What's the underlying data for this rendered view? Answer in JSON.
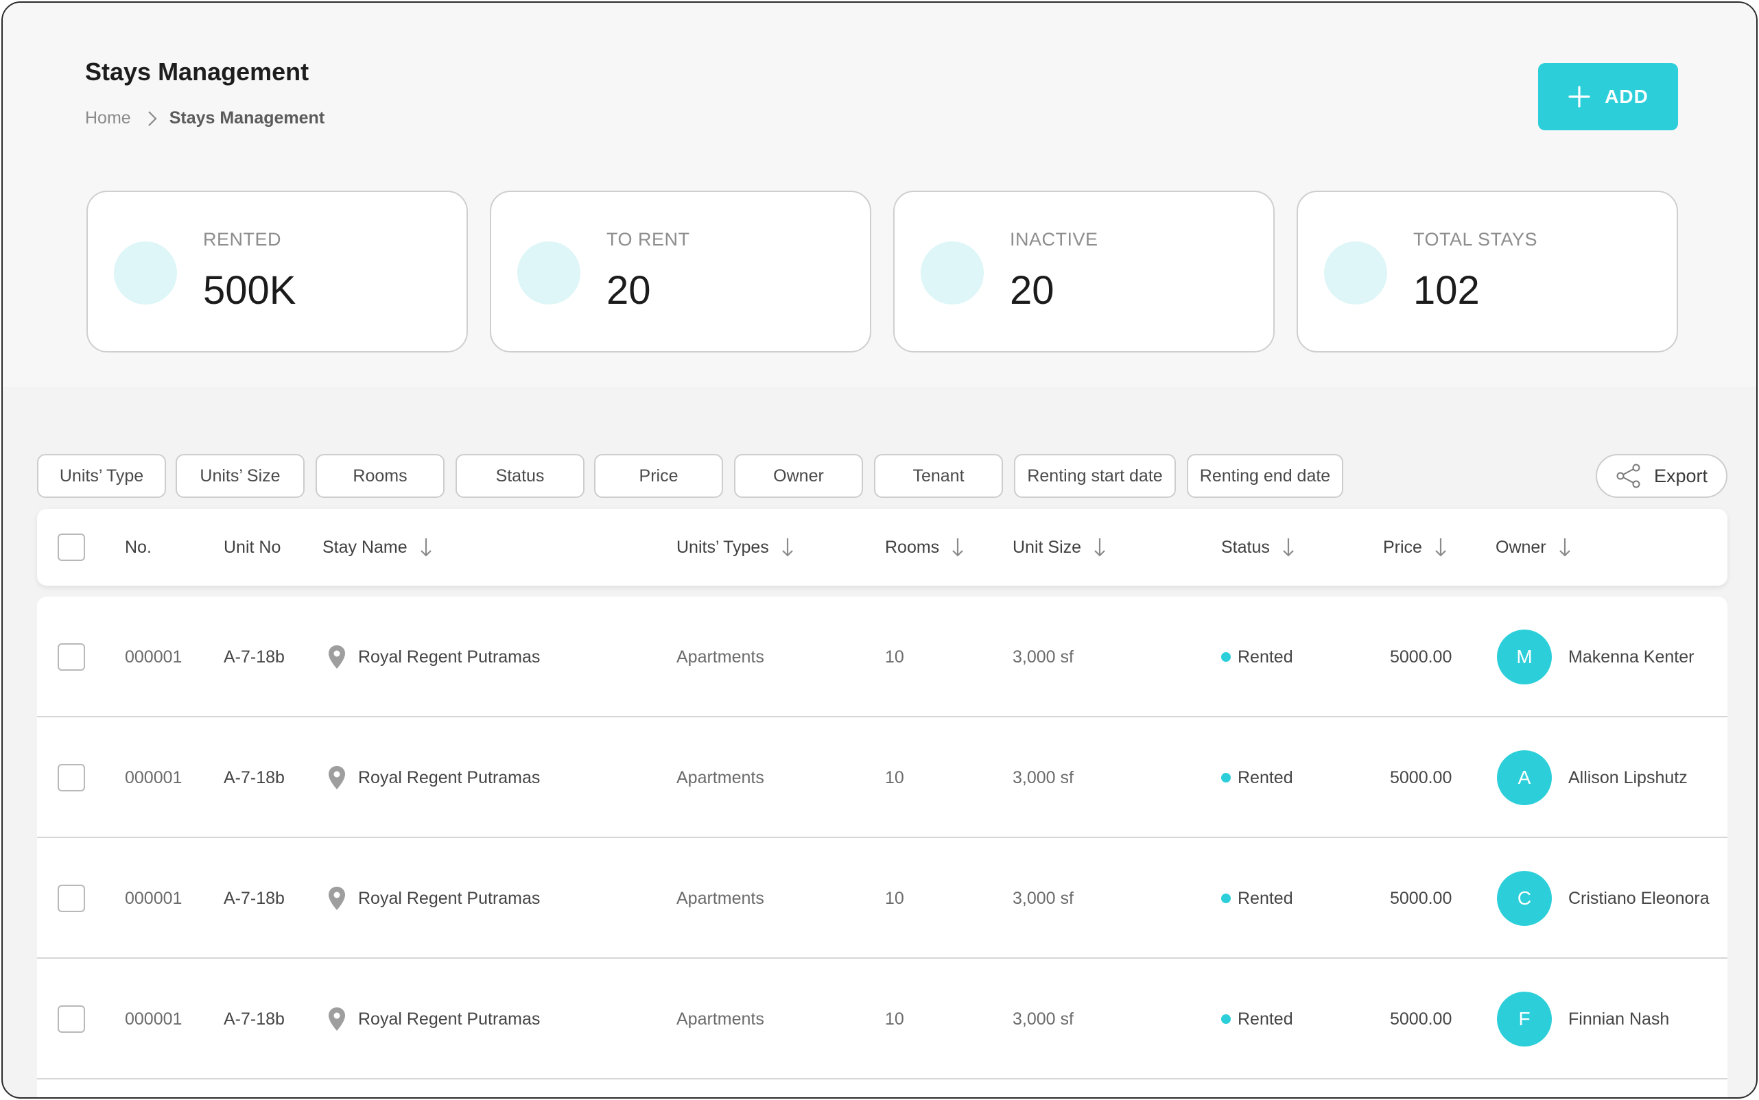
{
  "header": {
    "title": "Stays Management",
    "breadcrumb": {
      "home": "Home",
      "current": "Stays Management"
    },
    "add_label": "ADD"
  },
  "stats": [
    {
      "label": "RENTED",
      "value": "500K"
    },
    {
      "label": "TO RENT",
      "value": "20"
    },
    {
      "label": "INACTIVE",
      "value": "20"
    },
    {
      "label": "TOTAL STAYS",
      "value": "102"
    }
  ],
  "filters": [
    "Units’ Type",
    "Units’ Size",
    "Rooms",
    "Status",
    "Price",
    "Owner",
    "Tenant",
    "Renting start date",
    "Renting end date"
  ],
  "export_label": "Export",
  "table": {
    "columns": {
      "no": "No.",
      "unit_no": "Unit No",
      "stay_name": "Stay Name",
      "unit_type": "Units’ Types",
      "rooms": "Rooms",
      "unit_size": "Unit Size",
      "status": "Status",
      "price": "Price",
      "owner": "Owner"
    },
    "rows": [
      {
        "no": "000001",
        "unit_no": "A-7-18b",
        "stay_name": "Royal Regent Putramas",
        "unit_type": "Apartments",
        "rooms": "10",
        "unit_size": "3,000 sf",
        "status": "Rented",
        "price": "5000.00",
        "owner_initial": "M",
        "owner": "Makenna Kenter"
      },
      {
        "no": "000001",
        "unit_no": "A-7-18b",
        "stay_name": "Royal Regent Putramas",
        "unit_type": "Apartments",
        "rooms": "10",
        "unit_size": "3,000 sf",
        "status": "Rented",
        "price": "5000.00",
        "owner_initial": "A",
        "owner": "Allison Lipshutz"
      },
      {
        "no": "000001",
        "unit_no": "A-7-18b",
        "stay_name": "Royal Regent Putramas",
        "unit_type": "Apartments",
        "rooms": "10",
        "unit_size": "3,000 sf",
        "status": "Rented",
        "price": "5000.00",
        "owner_initial": "C",
        "owner": "Cristiano Eleonora"
      },
      {
        "no": "000001",
        "unit_no": "A-7-18b",
        "stay_name": "Royal Regent Putramas",
        "unit_type": "Apartments",
        "rooms": "10",
        "unit_size": "3,000 sf",
        "status": "Rented",
        "price": "5000.00",
        "owner_initial": "F",
        "owner": "Finnian Nash"
      }
    ]
  },
  "colors": {
    "accent": "#2ccfd9",
    "stat_circle": "#def6f7"
  }
}
